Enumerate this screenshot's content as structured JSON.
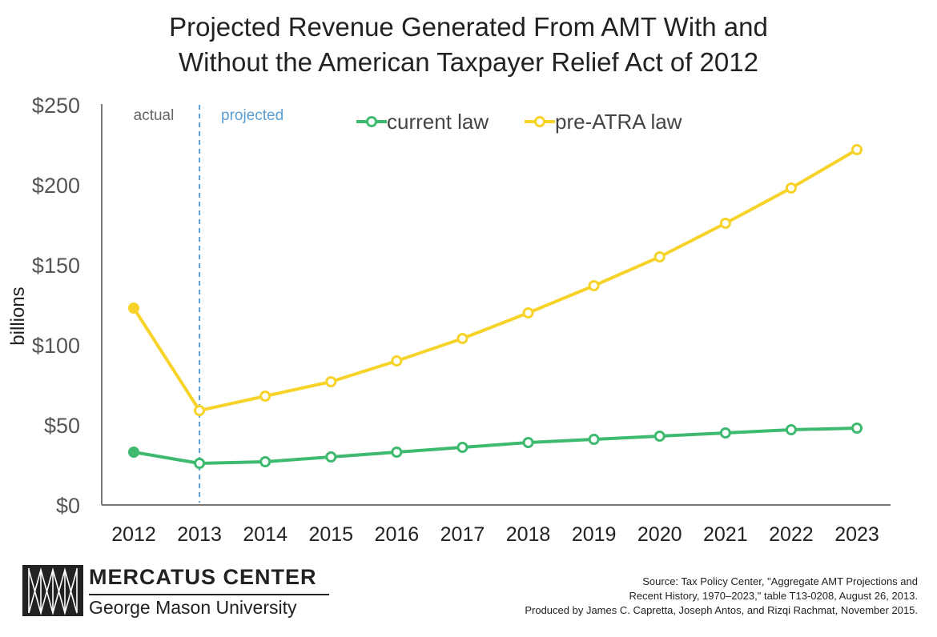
{
  "chart_data": {
    "type": "line",
    "title": [
      "Projected Revenue Generated From AMT With and",
      "Without the American Taxpayer Relief Act of 2012"
    ],
    "ylabel": "billions",
    "xlabel": "",
    "categories": [
      "2012",
      "2013",
      "2014",
      "2015",
      "2016",
      "2017",
      "2018",
      "2019",
      "2020",
      "2021",
      "2022",
      "2023"
    ],
    "ylim": [
      0,
      250
    ],
    "yticks": [
      "$0",
      "$50",
      "$100",
      "$150",
      "$200",
      "$250"
    ],
    "ytick_values": [
      0,
      50,
      100,
      150,
      200,
      250
    ],
    "series": [
      {
        "name": "current law",
        "color": "#3dba6f",
        "values": [
          33,
          26,
          27,
          30,
          33,
          36,
          39,
          41,
          43,
          45,
          47,
          48
        ]
      },
      {
        "name": "pre-ATRA law",
        "color": "#f7d32a",
        "values": [
          123,
          59,
          68,
          77,
          90,
          104,
          120,
          137,
          155,
          176,
          198,
          222
        ]
      }
    ],
    "actual_points": 1,
    "annotations": {
      "actual": "actual",
      "projected": "projected"
    },
    "divider_color": "#5a9fd4",
    "legend_position": "top-center",
    "grid": false
  },
  "logo": {
    "name": "MERCATUS CENTER",
    "subtitle": "George Mason University"
  },
  "source": [
    "Source: Tax Policy Center, \"Aggregate AMT Projections and",
    "Recent History, 1970–2023,\" table T13-0208, August 26, 2013.",
    "Produced by James C. Capretta, Joseph Antos, and Rizqi Rachmat, November 2015."
  ]
}
